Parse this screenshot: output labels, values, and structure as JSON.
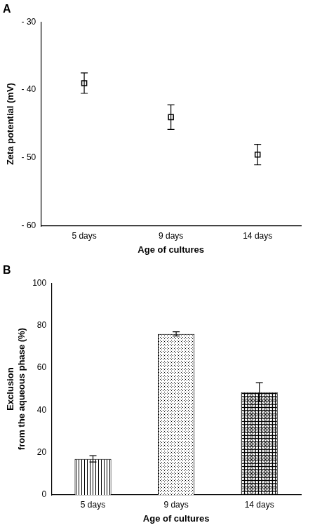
{
  "chart_data": [
    {
      "type": "scatter",
      "title": "A",
      "categories": [
        "5 days",
        "9 days",
        "14 days"
      ],
      "values": [
        -39,
        -44,
        -49.5
      ],
      "errors": [
        1.5,
        1.8,
        1.5
      ],
      "x_label": "Age of cultures",
      "y_label": "Zeta potential (mV)",
      "ylim": [
        -60,
        -30
      ],
      "yticks": [
        {
          "value": -60,
          "label": "- 60"
        },
        {
          "value": -50,
          "label": "- 50"
        },
        {
          "value": -40,
          "label": "- 40"
        },
        {
          "value": -30,
          "label": "- 30"
        }
      ],
      "marker": "square",
      "color": "#000000",
      "grid": false
    },
    {
      "type": "bar",
      "title": "B",
      "categories": [
        "5 days",
        "9 days",
        "14 days"
      ],
      "values": [
        17,
        76,
        48.5
      ],
      "errors": [
        1.5,
        1,
        4.5
      ],
      "x_label": "Age of cultures",
      "y_label": [
        "Exclusion",
        "from the aqueous phase (%)"
      ],
      "ylim": [
        0,
        100
      ],
      "yticks": [
        0,
        20,
        40,
        60,
        80,
        100
      ],
      "color": "#000000",
      "grid": false
    }
  ]
}
